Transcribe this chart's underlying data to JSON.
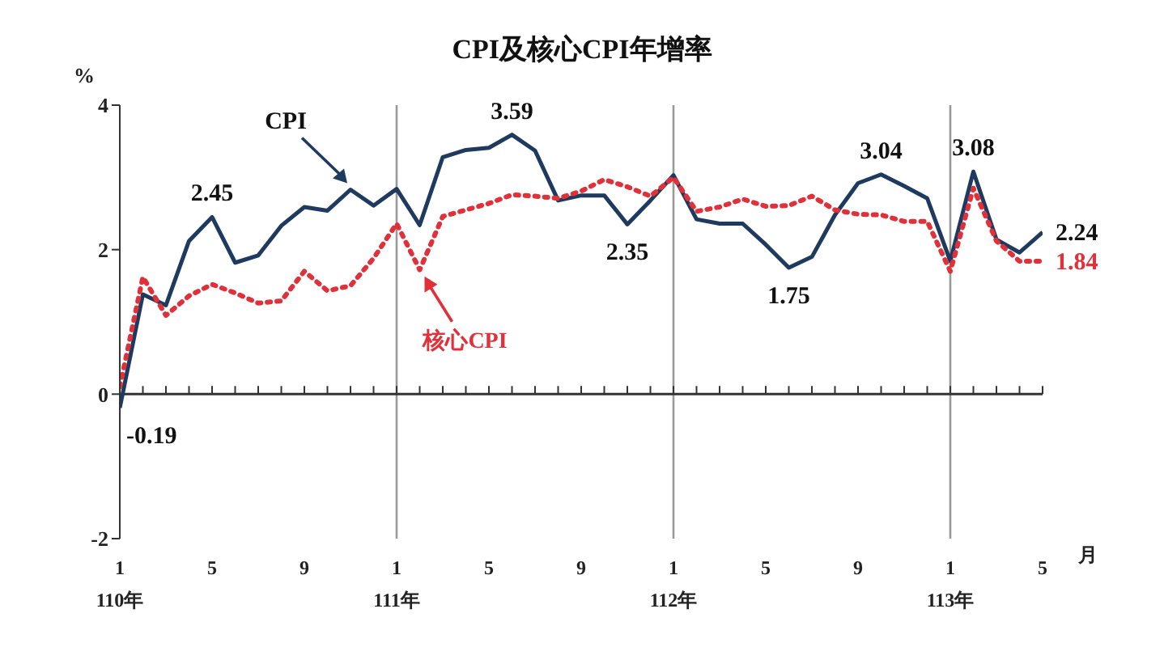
{
  "chart_data": {
    "type": "line",
    "title": "CPI及核心CPI年增率",
    "ylabel": "%",
    "xlabel": "月",
    "categories": [
      "1\n110年",
      null,
      null,
      null,
      "5",
      null,
      null,
      null,
      "9",
      null,
      null,
      null,
      "1\n111年",
      null,
      null,
      null,
      "5",
      null,
      null,
      null,
      "9",
      null,
      null,
      null,
      "1\n112年",
      null,
      null,
      null,
      "5",
      null,
      null,
      null,
      "9",
      null,
      null,
      null,
      "1\n113年",
      null,
      null,
      null,
      "5"
    ],
    "series": [
      {
        "name": "CPI",
        "color": "#1f3a5f",
        "line_style": "solid",
        "values": [
          -0.19,
          1.38,
          1.23,
          2.12,
          2.45,
          1.82,
          1.92,
          2.33,
          2.59,
          2.54,
          2.83,
          2.61,
          2.84,
          2.34,
          3.28,
          3.38,
          3.41,
          3.59,
          3.37,
          2.68,
          2.75,
          2.75,
          2.35,
          2.68,
          3.03,
          2.42,
          2.36,
          2.36,
          2.07,
          1.75,
          1.9,
          2.48,
          2.92,
          3.04,
          2.88,
          2.71,
          1.84,
          3.08,
          2.14,
          1.96,
          2.24
        ],
        "value_labels": [
          "-0.19",
          null,
          null,
          null,
          "2.45",
          null,
          null,
          null,
          null,
          null,
          null,
          null,
          null,
          null,
          null,
          null,
          null,
          "3.59",
          null,
          null,
          null,
          null,
          "2.35",
          null,
          null,
          null,
          null,
          null,
          null,
          "1.75",
          null,
          null,
          null,
          "3.04",
          null,
          null,
          null,
          "3.08",
          null,
          null,
          "2.24"
        ]
      },
      {
        "name": "核心CPI",
        "color": "#e0303a",
        "line_style": "dotted",
        "values": [
          0.1,
          1.62,
          1.09,
          1.36,
          1.52,
          1.4,
          1.26,
          1.29,
          1.7,
          1.43,
          1.5,
          1.88,
          2.36,
          1.72,
          2.46,
          2.55,
          2.64,
          2.76,
          2.74,
          2.71,
          2.81,
          2.97,
          2.87,
          2.74,
          3.0,
          2.53,
          2.59,
          2.7,
          2.6,
          2.61,
          2.74,
          2.55,
          2.49,
          2.48,
          2.39,
          2.39,
          1.7,
          2.85,
          2.12,
          1.84,
          1.84
        ],
        "value_labels": [
          null,
          null,
          null,
          null,
          null,
          null,
          null,
          null,
          null,
          null,
          null,
          null,
          null,
          null,
          null,
          null,
          null,
          null,
          null,
          null,
          null,
          null,
          null,
          null,
          null,
          null,
          null,
          null,
          null,
          null,
          null,
          null,
          null,
          null,
          null,
          null,
          null,
          null,
          null,
          null,
          "1.84"
        ]
      }
    ],
    "ylim": [
      -2,
      4
    ],
    "yticks": [
      -2,
      0,
      2,
      4
    ],
    "ref_lines": [
      {
        "axis": "x",
        "value": "1\n111年",
        "color": "#999999"
      },
      {
        "axis": "x",
        "value": "1\n112年",
        "color": "#999999"
      },
      {
        "axis": "x",
        "value": "1\n113年",
        "color": "#999999"
      },
      {
        "axis": "y",
        "value": 0,
        "color": "#333333"
      }
    ],
    "marker": "none"
  }
}
